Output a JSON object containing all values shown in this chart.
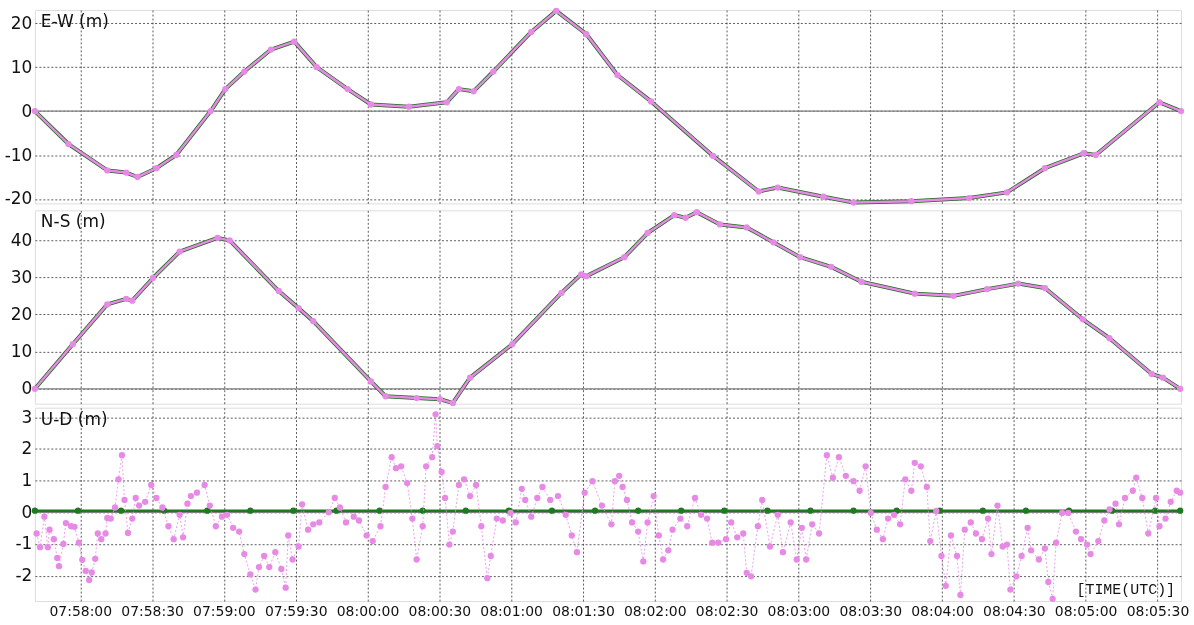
{
  "chart_data": [
    {
      "type": "line",
      "ylabel": "E-W (m)",
      "xlim": [
        7.9614,
        8.0944
      ],
      "ylim": [
        -21,
        23
      ],
      "yticks": [
        -20,
        -10,
        0,
        10,
        20
      ],
      "grid": true,
      "tick_labels": "y",
      "xticks": [
        {
          "value": 7.966667,
          "label": null
        },
        {
          "value": 7.975,
          "label": null
        },
        {
          "value": 7.983333,
          "label": null
        },
        {
          "value": 7.991667,
          "label": null
        },
        {
          "value": 8.0,
          "label": null
        },
        {
          "value": 8.008333,
          "label": null
        },
        {
          "value": 8.016667,
          "label": null
        },
        {
          "value": 8.025,
          "label": null
        },
        {
          "value": 8.033333,
          "label": null
        },
        {
          "value": 8.041667,
          "label": null
        },
        {
          "value": 8.05,
          "label": null
        },
        {
          "value": 8.058333,
          "label": null
        },
        {
          "value": 8.066667,
          "label": null
        },
        {
          "value": 8.075,
          "label": null
        },
        {
          "value": 8.083333,
          "label": null
        },
        {
          "value": 8.091667,
          "label": null
        }
      ],
      "ref_lines": [
        {
          "axis": "y",
          "value": 0,
          "color": "#808080"
        }
      ],
      "series": [
        {
          "color": "#1e6b1e",
          "marker": "none",
          "line_style": "solid",
          "x": [
            7.9614,
            7.9653,
            7.9698,
            7.972,
            7.9733,
            7.9755,
            7.9778,
            7.9818,
            7.9835,
            7.9857,
            7.9888,
            7.9915,
            7.9941,
            7.9977,
            8.0004,
            8.0048,
            8.0092,
            8.0106,
            8.0123,
            8.0146,
            8.019,
            8.0219,
            8.0254,
            8.029,
            8.0329,
            8.0401,
            8.0454,
            8.0476,
            8.0529,
            8.0564,
            8.0631,
            8.0698,
            8.0742,
            8.0786,
            8.0831,
            8.0845,
            8.0919,
            8.0944
          ],
          "values": [
            0,
            -7.5,
            -13.5,
            -14,
            -15,
            -13,
            -10,
            0,
            5,
            9,
            14,
            15.8,
            10,
            5,
            1.5,
            1,
            2,
            5,
            4.5,
            9,
            18,
            22.8,
            17.5,
            8.2,
            2.2,
            -10.2,
            -18.3,
            -17.4,
            -19.5,
            -20.8,
            -20.5,
            -19.8,
            -18.5,
            -13,
            -9.6,
            -10,
            2,
            0
          ]
        },
        {
          "color": "#e68ae6",
          "marker": "circle",
          "line_style": "solid",
          "x": [
            7.9614,
            7.9653,
            7.9698,
            7.972,
            7.9733,
            7.9755,
            7.9778,
            7.9818,
            7.9835,
            7.9857,
            7.9888,
            7.9915,
            7.9941,
            7.9977,
            8.0004,
            8.0048,
            8.0092,
            8.0106,
            8.0123,
            8.0146,
            8.019,
            8.0219,
            8.0254,
            8.029,
            8.0329,
            8.0401,
            8.0454,
            8.0476,
            8.0529,
            8.0564,
            8.0631,
            8.0698,
            8.0742,
            8.0786,
            8.0831,
            8.0845,
            8.0919,
            8.0944
          ],
          "values": [
            0,
            -7.5,
            -13.5,
            -14,
            -15,
            -13,
            -10,
            0,
            5,
            9,
            14,
            15.8,
            10,
            5,
            1.5,
            1,
            2,
            5,
            4.5,
            9,
            18,
            22.8,
            17.5,
            8.2,
            2.2,
            -10.2,
            -18.3,
            -17.4,
            -19.5,
            -20.8,
            -20.5,
            -19.8,
            -18.5,
            -13,
            -9.6,
            -10,
            2,
            0
          ]
        }
      ]
    },
    {
      "type": "line",
      "ylabel": "N-S (m)",
      "xlim": [
        7.9614,
        8.0944
      ],
      "ylim": [
        -4,
        48
      ],
      "yticks": [
        0,
        10,
        20,
        30,
        40
      ],
      "grid": true,
      "tick_labels": "y",
      "xticks": [
        {
          "value": 7.966667,
          "label": null
        },
        {
          "value": 7.975,
          "label": null
        },
        {
          "value": 7.983333,
          "label": null
        },
        {
          "value": 7.991667,
          "label": null
        },
        {
          "value": 8.0,
          "label": null
        },
        {
          "value": 8.008333,
          "label": null
        },
        {
          "value": 8.016667,
          "label": null
        },
        {
          "value": 8.025,
          "label": null
        },
        {
          "value": 8.033333,
          "label": null
        },
        {
          "value": 8.041667,
          "label": null
        },
        {
          "value": 8.05,
          "label": null
        },
        {
          "value": 8.058333,
          "label": null
        },
        {
          "value": 8.066667,
          "label": null
        },
        {
          "value": 8.075,
          "label": null
        },
        {
          "value": 8.083333,
          "label": null
        },
        {
          "value": 8.091667,
          "label": null
        }
      ],
      "ref_lines": [
        {
          "axis": "y",
          "value": 0,
          "color": "#808080"
        }
      ],
      "series": [
        {
          "color": "#1e6b1e",
          "marker": "none",
          "line_style": "solid",
          "x": [
            7.9614,
            7.9658,
            7.9698,
            7.972,
            7.9727,
            7.9751,
            7.9782,
            7.9826,
            7.984,
            7.9897,
            7.992,
            7.9937,
            8.0004,
            8.0021,
            8.0057,
            8.0084,
            8.0099,
            8.0119,
            8.0168,
            8.0225,
            8.0248,
            8.0254,
            8.0298,
            8.0325,
            8.0356,
            8.0369,
            8.0382,
            8.0409,
            8.044,
            8.0471,
            8.0502,
            8.0538,
            8.0573,
            8.0635,
            8.068,
            8.0719,
            8.0755,
            8.0786,
            8.083,
            8.0861,
            8.091,
            8.0923,
            8.0943
          ],
          "values": [
            0,
            12,
            22.7,
            24.2,
            23.7,
            29.8,
            36.9,
            40.6,
            39.9,
            26.3,
            21.7,
            18.2,
            2,
            -2,
            -2.5,
            -2.8,
            -3.8,
            3,
            12,
            25.8,
            30.8,
            30.3,
            35.4,
            41.9,
            46.7,
            46,
            47.5,
            44.2,
            43.4,
            39.4,
            35.4,
            32.8,
            28.8,
            25.6,
            25,
            26.8,
            28.3,
            27.1,
            18.7,
            13.6,
            4,
            3,
            0
          ]
        },
        {
          "color": "#e68ae6",
          "marker": "circle",
          "line_style": "solid",
          "x": [
            7.9614,
            7.9658,
            7.9698,
            7.972,
            7.9727,
            7.9751,
            7.9782,
            7.9826,
            7.984,
            7.9897,
            7.992,
            7.9937,
            8.0004,
            8.0021,
            8.0057,
            8.0084,
            8.0099,
            8.0119,
            8.0168,
            8.0225,
            8.0248,
            8.0254,
            8.0298,
            8.0325,
            8.0356,
            8.0369,
            8.0382,
            8.0409,
            8.044,
            8.0471,
            8.0502,
            8.0538,
            8.0573,
            8.0635,
            8.068,
            8.0719,
            8.0755,
            8.0786,
            8.083,
            8.0861,
            8.091,
            8.0923,
            8.0943
          ],
          "values": [
            0,
            12,
            22.7,
            24.2,
            23.7,
            29.8,
            36.9,
            40.6,
            39.9,
            26.3,
            21.7,
            18.2,
            2,
            -2,
            -2.5,
            -2.8,
            -3.8,
            3,
            12,
            25.8,
            30.8,
            30.3,
            35.4,
            41.9,
            46.7,
            46,
            47.5,
            44.2,
            43.4,
            39.4,
            35.4,
            32.8,
            28.8,
            25.6,
            25,
            26.8,
            28.3,
            27.1,
            18.7,
            13.6,
            4,
            3,
            0
          ]
        }
      ]
    },
    {
      "type": "line",
      "ylabel": "U-D (m)",
      "xlabel": "[TIME(UTC)]",
      "xlim": [
        7.9614,
        8.0944
      ],
      "ylim": [
        -2.8,
        3.3
      ],
      "yticks": [
        -2,
        -1,
        0,
        1,
        2,
        3
      ],
      "grid": true,
      "xticks": [
        {
          "value": 7.966667,
          "label": "07:58:00"
        },
        {
          "value": 7.975,
          "label": "07:58:30"
        },
        {
          "value": 7.983333,
          "label": "07:59:00"
        },
        {
          "value": 7.991667,
          "label": "07:59:30"
        },
        {
          "value": 8.0,
          "label": "08:00:00"
        },
        {
          "value": 8.008333,
          "label": "08:00:30"
        },
        {
          "value": 8.016667,
          "label": "08:01:00"
        },
        {
          "value": 8.025,
          "label": "08:01:30"
        },
        {
          "value": 8.033333,
          "label": "08:02:00"
        },
        {
          "value": 8.041667,
          "label": "08:02:30"
        },
        {
          "value": 8.05,
          "label": "08:03:00"
        },
        {
          "value": 8.058333,
          "label": "08:03:30"
        },
        {
          "value": 8.066667,
          "label": "08:04:00"
        },
        {
          "value": 8.075,
          "label": "08:04:30"
        },
        {
          "value": 8.083333,
          "label": "08:05:00"
        },
        {
          "value": 8.091667,
          "label": "08:05:30"
        }
      ],
      "ref_lines": [
        {
          "axis": "y",
          "value": 0,
          "color": "#808080"
        }
      ],
      "series": [
        {
          "color": "#1e7a1e",
          "marker": "circle",
          "line_style": "solid",
          "x": [
            7.9614,
            7.9664,
            7.9714,
            7.9764,
            7.9814,
            7.9864,
            7.9914,
            7.9964,
            8.0014,
            8.0064,
            8.0114,
            8.0164,
            8.0214,
            8.0264,
            8.0314,
            8.0364,
            8.0414,
            8.0464,
            8.0514,
            8.0564,
            8.0614,
            8.0664,
            8.0714,
            8.0764,
            8.0814,
            8.0864,
            8.0914,
            8.0943
          ],
          "values": [
            0.05,
            0.05,
            0.05,
            0.05,
            0.05,
            0.05,
            0.05,
            0.05,
            0.05,
            0.05,
            0.05,
            0.05,
            0.05,
            0.05,
            0.05,
            0.05,
            0.05,
            0.05,
            0.05,
            0.05,
            0.05,
            0.05,
            0.05,
            0.05,
            0.05,
            0.05,
            0.05,
            0.05
          ]
        },
        {
          "color": "#e68ae6",
          "marker": "circle",
          "line_style": "dotted",
          "x": [
            7.9616,
            7.962,
            7.9625,
            7.9629,
            7.9631,
            7.9636,
            7.964,
            7.9642,
            7.9647,
            7.965,
            7.9656,
            7.966,
            7.9665,
            7.9669,
            7.9673,
            7.9677,
            7.968,
            7.9684,
            7.9687,
            7.9691,
            7.9696,
            7.9698,
            7.9702,
            7.9707,
            7.9711,
            7.9715,
            7.9718,
            7.9722,
            7.9727,
            7.9731,
            7.9735,
            7.9742,
            7.9749,
            7.9755,
            7.9762,
            7.9769,
            7.9775,
            7.9782,
            7.9786,
            7.9791,
            7.9795,
            7.9802,
            7.9811,
            7.9817,
            7.9824,
            7.9831,
            7.9837,
            7.9844,
            7.9851,
            7.9857,
            7.9864,
            7.987,
            7.9874,
            7.988,
            7.9886,
            7.9893,
            7.99,
            7.9905,
            7.9908,
            7.9913,
            7.992,
            7.9924,
            7.9931,
            7.9937,
            7.9944,
            7.9955,
            7.9962,
            7.9968,
            7.9975,
            7.9984,
            7.999,
            7.9999,
            8.0006,
            8.0015,
            8.0021,
            8.0028,
            8.0033,
            8.0039,
            8.0046,
            8.0052,
            8.0057,
            8.0064,
            8.0068,
            8.0075,
            8.0079,
            8.0081,
            8.0086,
            8.009,
            8.0095,
            8.0099,
            8.0106,
            8.0112,
            8.0119,
            8.0126,
            8.0132,
            8.0139,
            8.0143,
            8.015,
            8.0157,
            8.0166,
            8.0172,
            8.0179,
            8.0183,
            8.019,
            8.0197,
            8.0203,
            8.0212,
            8.0221,
            8.023,
            8.0237,
            8.0243,
            8.0252,
            8.0261,
            8.0272,
            8.0283,
            8.0287,
            8.0292,
            8.0296,
            8.0301,
            8.0307,
            8.0314,
            8.032,
            8.0325,
            8.0332,
            8.0338,
            8.0343,
            8.0349,
            8.0354,
            8.0363,
            8.0371,
            8.038,
            8.0387,
            8.0394,
            8.04,
            8.0407,
            8.0416,
            8.0422,
            8.0429,
            8.0436,
            8.044,
            8.0445,
            8.0453,
            8.0458,
            8.0467,
            8.0476,
            8.0482,
            8.0491,
            8.0498,
            8.0504,
            8.0509,
            8.0516,
            8.0524,
            8.0533,
            8.054,
            8.0547,
            8.0555,
            8.0564,
            8.0571,
            8.0578,
            8.0584,
            8.0591,
            8.0598,
            8.0604,
            8.0611,
            8.0618,
            8.0624,
            8.0631,
            8.0635,
            8.0642,
            8.0649,
            8.0653,
            8.066,
            8.0666,
            8.0671,
            8.0677,
            8.0684,
            8.0688,
            8.0693,
            8.07,
            8.0706,
            8.0713,
            8.072,
            8.0724,
            8.0731,
            8.0737,
            8.0742,
            8.0746,
            8.0753,
            8.0759,
            8.0766,
            8.077,
            8.0779,
            8.0786,
            8.079,
            8.0795,
            8.0799,
            8.0806,
            8.0813,
            8.0822,
            8.0828,
            8.0835,
            8.0839,
            8.0848,
            8.0855,
            8.0861,
            8.0868,
            8.0872,
            8.0879,
            8.0888,
            8.0892,
            8.0899,
            8.0906,
            8.0915,
            8.0919,
            8.0926,
            8.0932,
            8.0939,
            8.0943
          ],
          "values": [
            -0.67,
            -1.1,
            -0.14,
            -1.1,
            -0.55,
            -0.85,
            -1.44,
            -1.7,
            -1.0,
            -0.34,
            -0.44,
            -0.46,
            -0.96,
            -1.5,
            -1.85,
            -2.14,
            -1.9,
            -1.47,
            -0.67,
            -0.85,
            -0.67,
            -0.18,
            -0.2,
            0.15,
            1.04,
            1.8,
            0.39,
            -0.65,
            -0.2,
            0.45,
            0.21,
            0.33,
            0.86,
            0.45,
            0.15,
            -0.44,
            -0.85,
            -0.08,
            -0.79,
            0.27,
            0.51,
            0.62,
            0.86,
            0.21,
            -0.44,
            -0.14,
            -0.08,
            -0.49,
            -0.61,
            -1.32,
            -1.96,
            -2.44,
            -1.73,
            -1.38,
            -1.73,
            -1.26,
            -1.79,
            -2.38,
            -0.73,
            -1.49,
            -1.08,
            0.25,
            -0.55,
            -0.38,
            -0.32,
            0,
            0.45,
            0.15,
            -0.32,
            -0.14,
            -0.26,
            -0.73,
            -0.91,
            -0.44,
            0.8,
            1.74,
            1.39,
            1.45,
            0.92,
            -0.2,
            -1.49,
            -0.44,
            1.45,
            1.74,
            3.09,
            2.09,
            1.27,
            0.45,
            -1.02,
            -0.61,
            0.86,
            1.04,
            0.51,
            0.86,
            -0.44,
            -2.08,
            -1.38,
            -0.2,
            -0.26,
            -0.02,
            -0.32,
            0.74,
            0.39,
            -0.14,
            0.45,
            0.8,
            0.39,
            0.51,
            -0.08,
            -0.73,
            -1.26,
            0.62,
            0.98,
            0.21,
            -0.38,
            0.98,
            1.15,
            0.8,
            0.39,
            -0.32,
            -0.61,
            -1.55,
            -0.32,
            0.51,
            -0.73,
            -1.49,
            -1.2,
            -0.55,
            -0.2,
            -0.44,
            0.45,
            -0.08,
            -0.2,
            -0.96,
            -0.96,
            -0.85,
            -0.32,
            -0.79,
            -0.67,
            -1.91,
            -2.02,
            -0.44,
            0.39,
            -1.08,
            -0.08,
            -1.26,
            -0.32,
            -1.49,
            -0.49,
            -1.49,
            -0.38,
            -0.67,
            1.8,
            1.09,
            1.74,
            1.15,
            0.98,
            0.68,
            1.45,
            -0.02,
            -0.55,
            -0.85,
            -0.2,
            -0.08,
            -0.38,
            1.04,
            0.68,
            1.56,
            1.45,
            0.8,
            -0.91,
            0.04,
            -1.38,
            -2.32,
            -0.73,
            -1.38,
            -2.61,
            -0.55,
            -0.32,
            -0.67,
            -0.85,
            -0.2,
            -1.32,
            0.21,
            -1.08,
            -1.02,
            -2.44,
            -2.02,
            -1.38,
            -0.49,
            -1.2,
            -1.49,
            -1.14,
            -2.2,
            -2.73,
            -0.96,
            -0.02,
            -0.02,
            -0.61,
            -0.85,
            -1.02,
            -1.32,
            -0.91,
            -0.26,
            0.09,
            0.27,
            -0.38,
            0.45,
            0.68,
            1.09,
            0.45,
            -0.67,
            0.45,
            -0.44,
            -0.2,
            0.33,
            0.68,
            0.62
          ]
        }
      ]
    }
  ]
}
